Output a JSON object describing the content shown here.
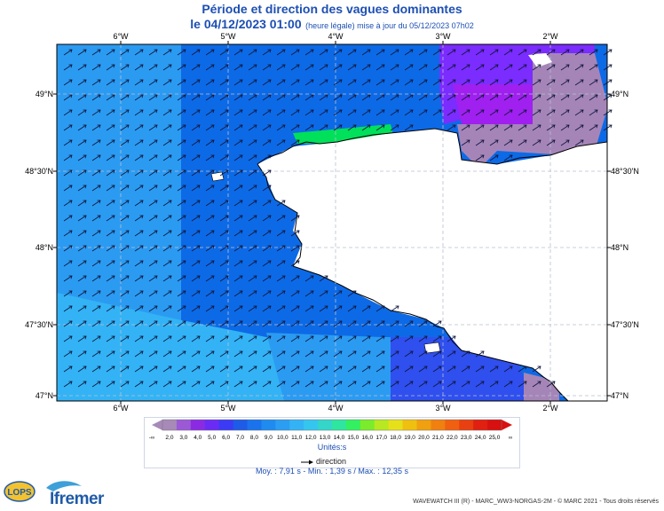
{
  "header": {
    "title": "Période et direction des vagues dominantes",
    "date": "le 04/12/2023 01:00",
    "note": "(heure légale) mise à jour du 05/12/2023 07h02"
  },
  "map": {
    "lon_labels": [
      "6°W",
      "5°W",
      "4°W",
      "3°W",
      "2°W"
    ],
    "lat_labels": [
      "49°N",
      "48°30'N",
      "48°N",
      "47°30'N",
      "47°N"
    ],
    "colors": {
      "land": "#ffffff",
      "sea_blue": "#0d6ae6",
      "sea_light": "#2b9bf2",
      "sea_cyan": "#33b3f5",
      "sea_purple": "#7b2cff",
      "sea_violet": "#a020f0",
      "sea_grey": "#a585b8",
      "coast_green": "#00e05a",
      "coast_teal": "#2fd9c4",
      "grid": "#b8c0cf",
      "coastline": "#000000"
    }
  },
  "legend": {
    "less_symbol": "-∞",
    "more_symbol": "∞",
    "values": [
      "2,0",
      "3,0",
      "4,0",
      "5,0",
      "6,0",
      "7,0",
      "8,0",
      "9,0",
      "10,0",
      "11,0",
      "12,0",
      "13,0",
      "14,0",
      "15,0",
      "16,0",
      "17,0",
      "18,0",
      "19,0",
      "20,0",
      "21,0",
      "22,0",
      "23,0",
      "24,0",
      "25,0"
    ],
    "colors": [
      "#a78ab8",
      "#9b59d6",
      "#8a2be2",
      "#6a2cf5",
      "#3b3bf5",
      "#1e5be6",
      "#1a73ec",
      "#1f8bf0",
      "#2b9df2",
      "#33b3f5",
      "#35c6f0",
      "#33d6c8",
      "#2ee6a0",
      "#33f060",
      "#7aec2b",
      "#b8e820",
      "#e6e01a",
      "#f0c010",
      "#f0a010",
      "#f08010",
      "#f06010",
      "#e84010",
      "#e02010",
      "#d81010"
    ],
    "units": "Unités:s",
    "direction_label": "direction"
  },
  "stats": "Moy. : 7,91 s   -   Min. : 1,39 s / Max. : 12,35 s",
  "logos": {
    "lops": "LOPS",
    "ifremer": "Ifremer"
  },
  "credit": "WAVEWATCH III (R) - MARC_WW3-NORGAS-2M - © MARC 2021 - Tous droits réservés"
}
